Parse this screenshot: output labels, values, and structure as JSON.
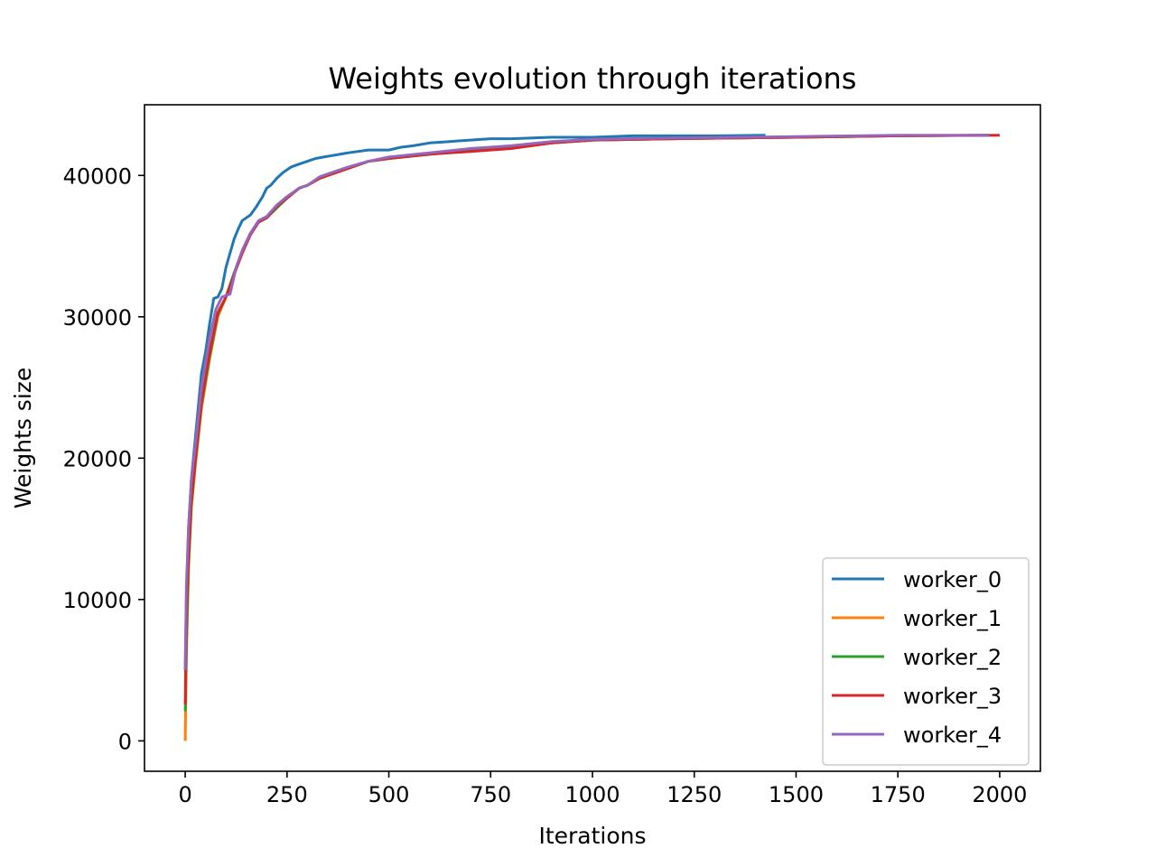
{
  "chart_data": {
    "type": "line",
    "title": "Weights evolution through iterations",
    "xlabel": "Iterations",
    "ylabel": "Weights size",
    "xlim": [
      -100,
      2100
    ],
    "ylim": [
      -2150,
      45000
    ],
    "xticks": [
      0,
      250,
      500,
      750,
      1000,
      1250,
      1500,
      1750,
      2000
    ],
    "yticks": [
      0,
      10000,
      20000,
      30000,
      40000
    ],
    "grid": false,
    "legend_position": "lower right",
    "series": [
      {
        "name": "worker_0",
        "color": "#1f77b4",
        "x": [
          0,
          3,
          8,
          15,
          25,
          40,
          50,
          60,
          70,
          80,
          90,
          100,
          110,
          120,
          130,
          140,
          150,
          160,
          175,
          190,
          200,
          210,
          225,
          240,
          260,
          280,
          300,
          320,
          340,
          360,
          400,
          450,
          500,
          530,
          560,
          600,
          650,
          700,
          750,
          800,
          900,
          1000,
          1100,
          1200,
          1300,
          1425
        ],
        "y": [
          5000,
          10000,
          15000,
          18500,
          21500,
          26000,
          27500,
          29500,
          31300,
          31400,
          32000,
          33500,
          34500,
          35500,
          36200,
          36800,
          37000,
          37200,
          37800,
          38500,
          39100,
          39300,
          39800,
          40200,
          40600,
          40800,
          41000,
          41200,
          41300,
          41400,
          41600,
          41800,
          41800,
          42000,
          42100,
          42300,
          42400,
          42500,
          42600,
          42600,
          42700,
          42700,
          42800,
          42800,
          42800,
          42850
        ]
      },
      {
        "name": "worker_1",
        "color": "#ff7f0e",
        "x": [
          0,
          1,
          3,
          8,
          15,
          25,
          40,
          60,
          80,
          100,
          120,
          140,
          160,
          180,
          200,
          225,
          250,
          280,
          300,
          330,
          360,
          400,
          450,
          500,
          600,
          700,
          800,
          900,
          1000,
          1200,
          1500,
          1750,
          1975
        ],
        "y": [
          0,
          2000,
          6000,
          12000,
          16500,
          19500,
          23500,
          27000,
          30000,
          31400,
          33000,
          34500,
          35800,
          36700,
          37000,
          37800,
          38400,
          39100,
          39300,
          39800,
          40100,
          40500,
          41000,
          41200,
          41500,
          41800,
          42000,
          42300,
          42500,
          42600,
          42700,
          42800,
          42850
        ]
      },
      {
        "name": "worker_2",
        "color": "#2ca02c",
        "x": [
          0,
          1,
          3,
          8,
          15,
          25,
          40,
          60,
          80,
          100,
          120,
          140,
          160,
          180,
          200,
          225,
          250,
          280,
          300,
          330,
          360,
          400,
          450,
          500,
          600,
          700,
          800,
          900,
          1000,
          1200,
          1500,
          1750,
          1975
        ],
        "y": [
          2100,
          3000,
          7000,
          12500,
          16700,
          19800,
          23800,
          27200,
          30200,
          31400,
          33100,
          34600,
          35900,
          36700,
          37000,
          37700,
          38400,
          39100,
          39300,
          39800,
          40100,
          40500,
          41000,
          41200,
          41500,
          41800,
          42000,
          42300,
          42500,
          42600,
          42700,
          42800,
          42850
        ]
      },
      {
        "name": "worker_3",
        "color": "#d62728",
        "x": [
          0,
          1,
          3,
          8,
          15,
          25,
          40,
          60,
          80,
          100,
          120,
          140,
          160,
          180,
          200,
          225,
          250,
          280,
          300,
          330,
          360,
          400,
          450,
          500,
          600,
          700,
          800,
          900,
          1000,
          1200,
          1500,
          1750,
          2000
        ],
        "y": [
          2600,
          4800,
          8500,
          13000,
          17000,
          20000,
          24000,
          27500,
          30300,
          31400,
          33000,
          34500,
          35800,
          36700,
          37000,
          37800,
          38400,
          39100,
          39300,
          39800,
          40100,
          40500,
          41000,
          41200,
          41500,
          41700,
          41900,
          42300,
          42500,
          42600,
          42700,
          42800,
          42850
        ]
      },
      {
        "name": "worker_4",
        "color": "#9467bd",
        "x": [
          0,
          1,
          3,
          8,
          15,
          25,
          40,
          60,
          75,
          90,
          110,
          125,
          140,
          160,
          180,
          200,
          225,
          250,
          280,
          300,
          330,
          360,
          400,
          450,
          500,
          600,
          700,
          800,
          900,
          1000,
          1200,
          1500,
          1750,
          1975
        ],
        "y": [
          5000,
          7000,
          11000,
          15000,
          18500,
          21000,
          25000,
          28500,
          30500,
          31400,
          31600,
          33500,
          34700,
          35900,
          36800,
          37100,
          37900,
          38500,
          39100,
          39300,
          39900,
          40200,
          40600,
          41000,
          41300,
          41600,
          41900,
          42100,
          42400,
          42550,
          42650,
          42750,
          42850,
          42850
        ]
      }
    ]
  }
}
